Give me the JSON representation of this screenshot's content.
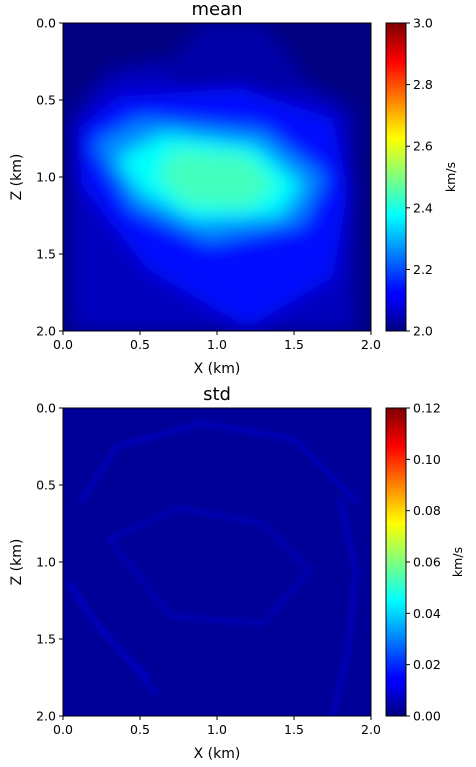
{
  "chart_data": [
    {
      "type": "heatmap",
      "title": "mean",
      "xlabel": "X (km)",
      "ylabel": "Z (km)",
      "xlim": [
        0.0,
        2.0
      ],
      "ylim": [
        2.0,
        0.0
      ],
      "x_ticks": [
        "0.0",
        "0.5",
        "1.0",
        "1.5",
        "2.0"
      ],
      "y_ticks": [
        "0.0",
        "0.5",
        "1.0",
        "1.5",
        "2.0"
      ],
      "colormap": "jet",
      "colorbar": {
        "label": "km/s",
        "range": [
          2.0,
          3.0
        ],
        "ticks": [
          "2.0",
          "2.2",
          "2.4",
          "2.6",
          "2.8",
          "3.0"
        ]
      },
      "background_value": 2.0,
      "field": [
        {
          "shape": "outer_halo",
          "value": 2.06,
          "polygon": [
            [
              0.05,
              2.0
            ],
            [
              0.05,
              0.6
            ],
            [
              0.3,
              0.3
            ],
            [
              0.95,
              0.2
            ],
            [
              1.6,
              0.4
            ],
            [
              1.88,
              0.55
            ],
            [
              1.9,
              2.0
            ]
          ]
        },
        {
          "shape": "top_lobe",
          "value": 2.04,
          "polygon": [
            [
              0.65,
              0.3
            ],
            [
              0.9,
              0.0
            ],
            [
              1.3,
              0.0
            ],
            [
              1.55,
              0.3
            ],
            [
              1.4,
              0.55
            ],
            [
              0.85,
              0.55
            ]
          ]
        },
        {
          "shape": "mid_body",
          "value": 2.14,
          "polygon": [
            [
              0.1,
              0.7
            ],
            [
              0.35,
              0.48
            ],
            [
              1.15,
              0.42
            ],
            [
              1.75,
              0.62
            ],
            [
              1.85,
              1.1
            ],
            [
              1.75,
              1.65
            ],
            [
              1.2,
              1.98
            ],
            [
              0.55,
              1.6
            ],
            [
              0.12,
              1.05
            ]
          ]
        },
        {
          "shape": "inner_body",
          "value": 2.26,
          "polygon": [
            [
              0.2,
              0.78
            ],
            [
              0.5,
              0.62
            ],
            [
              1.3,
              0.7
            ],
            [
              1.7,
              1.0
            ],
            [
              1.55,
              1.3
            ],
            [
              0.95,
              1.42
            ],
            [
              0.45,
              1.2
            ]
          ]
        },
        {
          "shape": "core",
          "value": 2.38,
          "polygon": [
            [
              0.35,
              0.88
            ],
            [
              0.65,
              0.72
            ],
            [
              1.25,
              0.8
            ],
            [
              1.55,
              1.05
            ],
            [
              1.4,
              1.25
            ],
            [
              0.85,
              1.28
            ],
            [
              0.5,
              1.1
            ]
          ]
        },
        {
          "shape": "peak",
          "value": 2.44,
          "polygon": [
            [
              0.72,
              0.82
            ],
            [
              1.2,
              0.86
            ],
            [
              1.38,
              1.05
            ],
            [
              1.2,
              1.2
            ],
            [
              0.8,
              1.18
            ],
            [
              0.62,
              1.0
            ]
          ]
        }
      ]
    },
    {
      "type": "heatmap",
      "title": "std",
      "xlabel": "X (km)",
      "ylabel": "Z (km)",
      "xlim": [
        0.0,
        2.0
      ],
      "ylim": [
        2.0,
        0.0
      ],
      "x_ticks": [
        "0.0",
        "0.5",
        "1.0",
        "1.5",
        "2.0"
      ],
      "y_ticks": [
        "0.0",
        "0.5",
        "1.0",
        "1.5",
        "2.0"
      ],
      "colormap": "jet",
      "colorbar": {
        "label": "km/s",
        "range": [
          0.0,
          0.12
        ],
        "ticks": [
          "0.00",
          "0.02",
          "0.04",
          "0.06",
          "0.08",
          "0.10",
          "0.12"
        ]
      },
      "background_value": 0.003,
      "field": [
        {
          "shape": "arc_upper",
          "value": 0.007,
          "path": [
            [
              0.12,
              0.6
            ],
            [
              0.35,
              0.25
            ],
            [
              0.9,
              0.1
            ],
            [
              1.5,
              0.2
            ],
            [
              1.9,
              0.6
            ]
          ]
        },
        {
          "shape": "arc_right",
          "value": 0.007,
          "path": [
            [
              1.8,
              0.6
            ],
            [
              1.9,
              1.05
            ],
            [
              1.85,
              1.6
            ],
            [
              1.75,
              2.0
            ]
          ]
        },
        {
          "shape": "streak_left_1",
          "value": 0.008,
          "path": [
            [
              0.05,
              1.15
            ],
            [
              0.25,
              1.45
            ],
            [
              0.55,
              1.75
            ]
          ]
        },
        {
          "shape": "streak_left_2",
          "value": 0.007,
          "path": [
            [
              0.1,
              1.25
            ],
            [
              0.35,
              1.55
            ],
            [
              0.6,
              1.85
            ]
          ]
        },
        {
          "shape": "inner_ring",
          "value": 0.006,
          "path": [
            [
              0.3,
              0.85
            ],
            [
              0.75,
              0.65
            ],
            [
              1.3,
              0.75
            ],
            [
              1.6,
              1.05
            ],
            [
              1.3,
              1.4
            ],
            [
              0.7,
              1.35
            ],
            [
              0.3,
              0.85
            ]
          ]
        }
      ]
    }
  ]
}
